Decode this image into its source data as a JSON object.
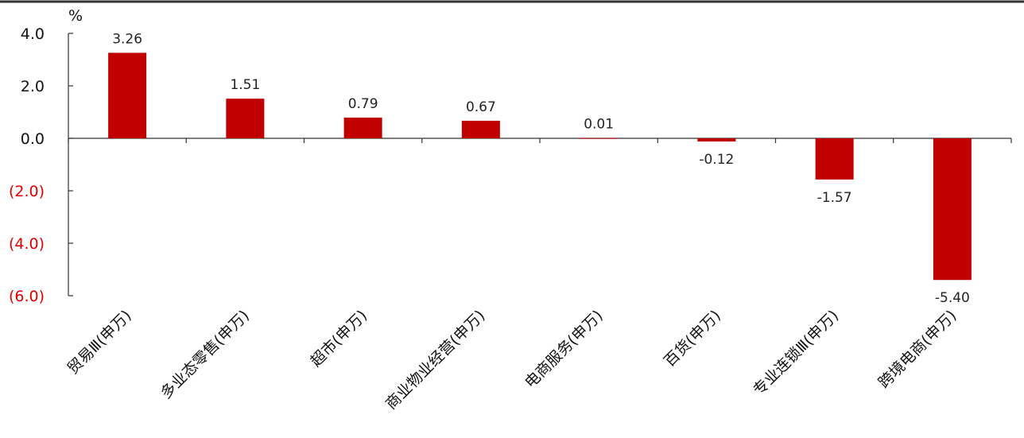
{
  "chart_data": {
    "type": "bar",
    "unit_label": "%",
    "categories": [
      "贸易Ⅲ(申万)",
      "多业态零售(申万)",
      "超市(申万)",
      "商业物业经营(申万)",
      "电商服务(申万)",
      "百货(申万)",
      "专业连锁Ⅲ(申万)",
      "跨境电商(申万)"
    ],
    "values": [
      3.26,
      1.51,
      0.79,
      0.67,
      0.01,
      -0.12,
      -1.57,
      -5.4
    ],
    "value_labels": [
      "3.26",
      "1.51",
      "0.79",
      "0.67",
      "0.01",
      "-0.12",
      "-1.57",
      "-5.40"
    ],
    "yticks": [
      4.0,
      2.0,
      0.0,
      -2.0,
      -4.0,
      -6.0
    ],
    "ytick_labels": [
      "4.0",
      "2.0",
      "0.0",
      "(2.0)",
      "(4.0)",
      "(6.0)"
    ],
    "ylim": [
      -6.0,
      4.0
    ],
    "bar_color": "#C00000",
    "positive_tick_color": "#111111",
    "negative_tick_color": "#E00000",
    "grid": false,
    "legend": "none"
  }
}
